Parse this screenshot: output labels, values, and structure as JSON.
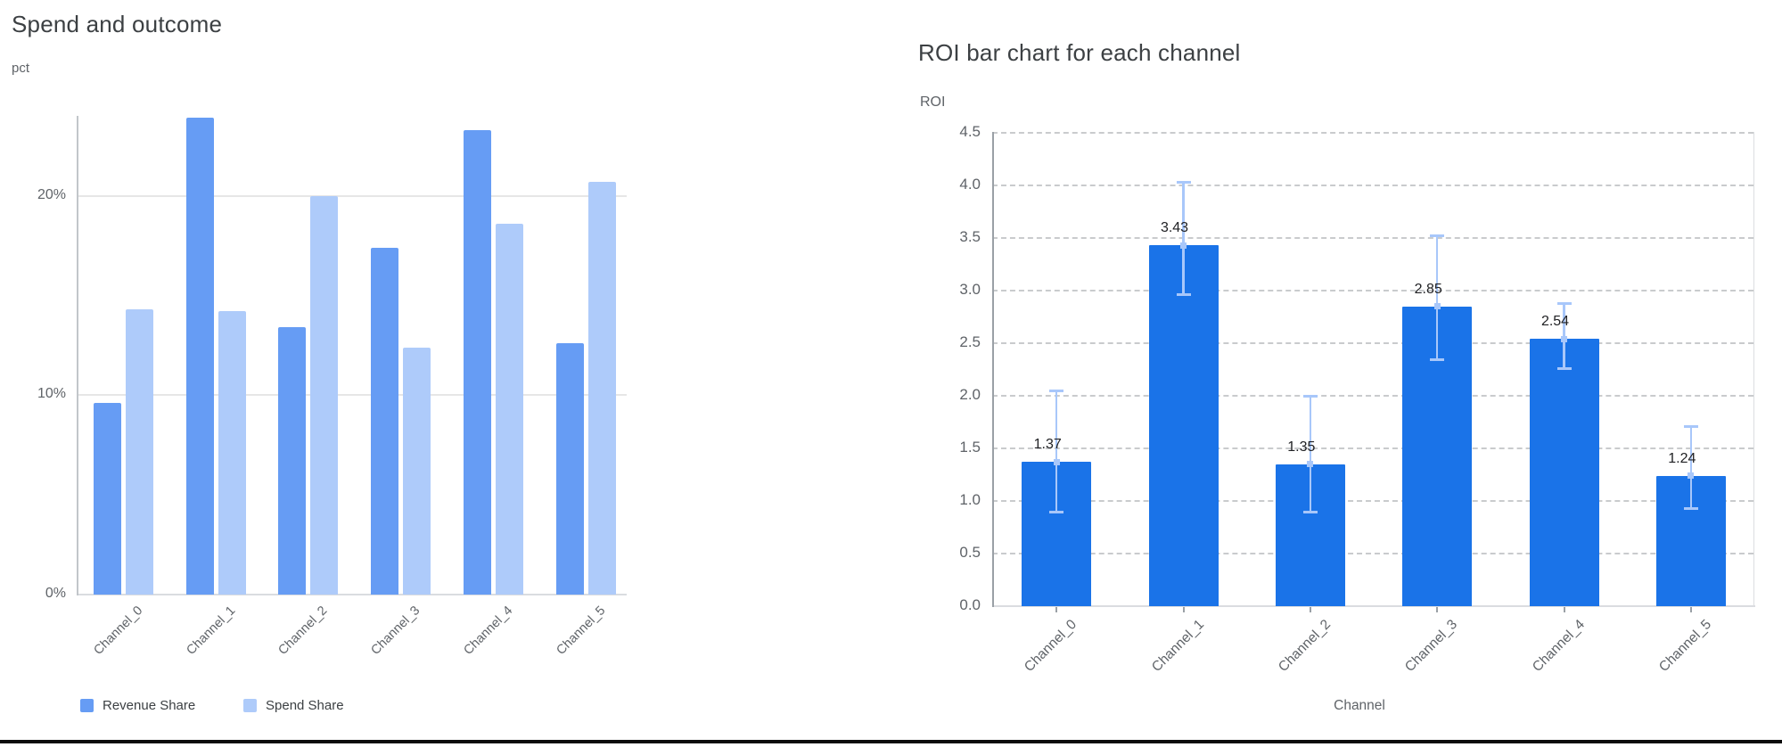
{
  "page": {
    "background": "#ffffff",
    "bottom_rule_color": "#0b0b0b"
  },
  "colors": {
    "revenue_share": "#669cf4",
    "spend_share": "#aecbfa",
    "roi_bar": "#1a73e8",
    "error_bar": "#a8c7fa",
    "title_text": "#3c4043",
    "tick_text": "#5f6368",
    "value_label_text": "#202124"
  },
  "chart_data": [
    {
      "type": "bar",
      "title": "Spend and outcome",
      "ylabel": "pct",
      "xlabel": "",
      "categories": [
        "Channel_0",
        "Channel_1",
        "Channel_2",
        "Channel_3",
        "Channel_4",
        "Channel_5"
      ],
      "series": [
        {
          "name": "Revenue Share",
          "color": "#669cf4",
          "values": [
            9.6,
            23.9,
            13.4,
            17.4,
            23.3,
            12.6
          ]
        },
        {
          "name": "Spend Share",
          "color": "#aecbfa",
          "values": [
            14.3,
            14.2,
            20.0,
            12.4,
            18.6,
            20.7
          ]
        }
      ],
      "value_unit": "%",
      "ylim": [
        0,
        24
      ],
      "y_gridline_values": [
        10,
        20
      ],
      "y_tick_labels": [
        "0%",
        "10%",
        "20%"
      ],
      "y_tick_values": [
        0,
        10,
        20
      ],
      "grid": "solid horizontal",
      "legend_position": "bottom-left",
      "legend": [
        {
          "label": "Revenue Share",
          "color": "#669cf4"
        },
        {
          "label": "Spend Share",
          "color": "#aecbfa"
        }
      ]
    },
    {
      "type": "bar",
      "title": "ROI bar chart for each channel",
      "ylabel": "ROI",
      "xlabel": "Channel",
      "categories": [
        "Channel_0",
        "Channel_1",
        "Channel_2",
        "Channel_3",
        "Channel_4",
        "Channel_5"
      ],
      "values": [
        1.37,
        3.43,
        1.35,
        2.85,
        2.54,
        1.24
      ],
      "value_labels": [
        "1.37",
        "3.43",
        "1.35",
        "2.85",
        "2.54",
        "1.24"
      ],
      "error_low": [
        0.89,
        2.96,
        0.89,
        2.34,
        2.26,
        0.93
      ],
      "error_high": [
        2.05,
        4.03,
        2.0,
        3.52,
        2.88,
        1.71
      ],
      "bar_color": "#1a73e8",
      "error_color": "#a8c7fa",
      "ylim": [
        0,
        4.5
      ],
      "y_tick_step": 0.5,
      "y_tick_labels": [
        "0.0",
        "0.5",
        "1.0",
        "1.5",
        "2.0",
        "2.5",
        "3.0",
        "3.5",
        "4.0",
        "4.5"
      ],
      "grid": "dashed horizontal",
      "legend_position": "none"
    }
  ]
}
